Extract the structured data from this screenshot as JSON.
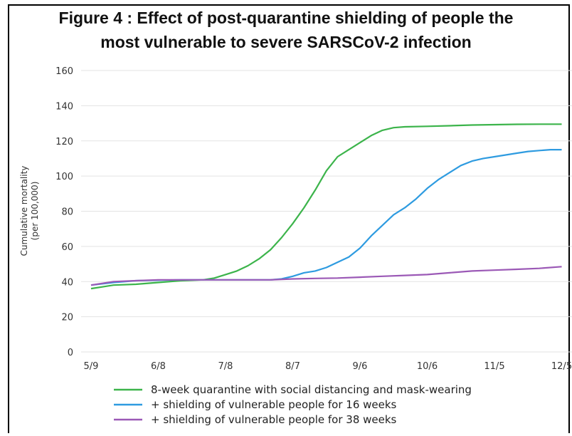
{
  "chart_data": {
    "type": "line",
    "title_line1": "Figure 4 : Effect of post-quarantine shielding of people the",
    "title_line2": "most vulnerable to severe SARSCoV-2 infection",
    "ylabel_line1": "Cumulative mortality",
    "ylabel_line2": "(per 100,000)",
    "xlabel": "",
    "ylim": [
      0,
      160
    ],
    "yticks": [
      0,
      20,
      40,
      60,
      80,
      100,
      120,
      140,
      160
    ],
    "xticks": [
      "5/9",
      "6/8",
      "7/8",
      "8/7",
      "9/6",
      "10/6",
      "11/5",
      "12/5"
    ],
    "x_range_days": [
      0,
      210
    ],
    "grid": true,
    "legend_position": "bottom",
    "series": [
      {
        "name": "8-week quarantine with social distancing and mask-wearing",
        "color": "#3cb44b",
        "points": [
          [
            0,
            36
          ],
          [
            5,
            37
          ],
          [
            10,
            38
          ],
          [
            20,
            38.5
          ],
          [
            30,
            39.5
          ],
          [
            40,
            40.5
          ],
          [
            50,
            41
          ],
          [
            55,
            42
          ],
          [
            60,
            44
          ],
          [
            65,
            46
          ],
          [
            70,
            49
          ],
          [
            75,
            53
          ],
          [
            80,
            58
          ],
          [
            85,
            65
          ],
          [
            90,
            73
          ],
          [
            95,
            82
          ],
          [
            100,
            92
          ],
          [
            105,
            103
          ],
          [
            110,
            111
          ],
          [
            115,
            115
          ],
          [
            120,
            119
          ],
          [
            125,
            123
          ],
          [
            130,
            126
          ],
          [
            135,
            127.5
          ],
          [
            140,
            128
          ],
          [
            150,
            128.3
          ],
          [
            160,
            128.6
          ],
          [
            170,
            129
          ],
          [
            180,
            129.2
          ],
          [
            190,
            129.4
          ],
          [
            200,
            129.5
          ],
          [
            210,
            129.5
          ]
        ]
      },
      {
        "name": "+ shielding of vulnerable people for 16 weeks",
        "color": "#2e9be0",
        "points": [
          [
            0,
            38
          ],
          [
            10,
            39.5
          ],
          [
            20,
            40.5
          ],
          [
            30,
            40.8
          ],
          [
            40,
            41
          ],
          [
            50,
            41
          ],
          [
            60,
            41
          ],
          [
            70,
            41
          ],
          [
            80,
            41
          ],
          [
            85,
            41.5
          ],
          [
            90,
            43
          ],
          [
            95,
            45
          ],
          [
            100,
            46
          ],
          [
            105,
            48
          ],
          [
            110,
            51
          ],
          [
            115,
            54
          ],
          [
            120,
            59
          ],
          [
            125,
            66
          ],
          [
            130,
            72
          ],
          [
            135,
            78
          ],
          [
            140,
            82
          ],
          [
            145,
            87
          ],
          [
            150,
            93
          ],
          [
            155,
            98
          ],
          [
            160,
            102
          ],
          [
            165,
            106
          ],
          [
            170,
            108.5
          ],
          [
            175,
            110
          ],
          [
            180,
            111
          ],
          [
            185,
            112
          ],
          [
            190,
            113
          ],
          [
            195,
            114
          ],
          [
            200,
            114.5
          ],
          [
            205,
            115
          ],
          [
            210,
            115
          ]
        ]
      },
      {
        "name": "+ shielding of vulnerable people for 38 weeks",
        "color": "#9b59b6",
        "points": [
          [
            0,
            38
          ],
          [
            10,
            40
          ],
          [
            20,
            40.5
          ],
          [
            30,
            41
          ],
          [
            60,
            41
          ],
          [
            80,
            41
          ],
          [
            90,
            41.5
          ],
          [
            100,
            41.8
          ],
          [
            110,
            42
          ],
          [
            120,
            42.5
          ],
          [
            130,
            43
          ],
          [
            140,
            43.5
          ],
          [
            150,
            44
          ],
          [
            160,
            45
          ],
          [
            170,
            46
          ],
          [
            180,
            46.5
          ],
          [
            190,
            47
          ],
          [
            200,
            47.5
          ],
          [
            210,
            48.5
          ]
        ]
      }
    ]
  }
}
